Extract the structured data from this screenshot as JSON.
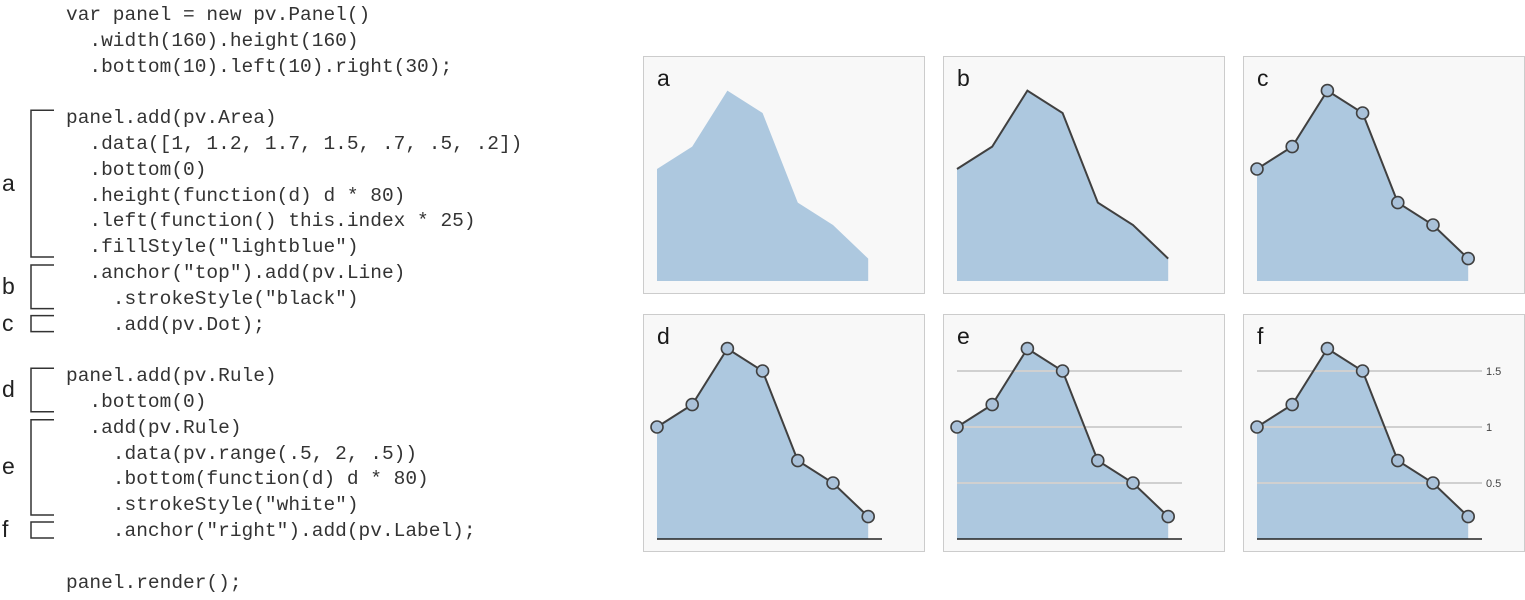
{
  "code_lines": [
    "var panel = new pv.Panel()",
    "  .width(160).height(160)",
    "  .bottom(10).left(10).right(30);",
    "",
    "panel.add(pv.Area)",
    "  .data([1, 1.2, 1.7, 1.5, .7, .5, .2])",
    "  .bottom(0)",
    "  .height(function(d) d * 80)",
    "  .left(function() this.index * 25)",
    "  .fillStyle(\"lightblue\")",
    "  .anchor(\"top\").add(pv.Line)",
    "    .strokeStyle(\"black\")",
    "    .add(pv.Dot);",
    "",
    "panel.add(pv.Rule)",
    "  .bottom(0)",
    "  .add(pv.Rule)",
    "    .data(pv.range(.5, 2, .5))",
    "    .bottom(function(d) d * 80)",
    "    .strokeStyle(\"white\")",
    "    .anchor(\"right\").add(pv.Label);",
    "",
    "panel.render();"
  ],
  "brackets": [
    {
      "label": "a",
      "first_line": 4,
      "last_line": 9
    },
    {
      "label": "b",
      "first_line": 10,
      "last_line": 11
    },
    {
      "label": "c",
      "first_line": 12,
      "last_line": 12
    },
    {
      "label": "d",
      "first_line": 14,
      "last_line": 15
    },
    {
      "label": "e",
      "first_line": 16,
      "last_line": 19
    },
    {
      "label": "f",
      "first_line": 20,
      "last_line": 20
    }
  ],
  "data_values": [
    1,
    1.2,
    1.7,
    1.5,
    0.7,
    0.5,
    0.2
  ],
  "rule_values": [
    0.5,
    1,
    1.5
  ],
  "rule_labels": [
    "0.5",
    "1",
    "1.5"
  ],
  "panels": [
    {
      "letter": "a",
      "line": false,
      "dots": false,
      "base_rule": false,
      "grid_rules": false,
      "grid_labels": false
    },
    {
      "letter": "b",
      "line": true,
      "dots": false,
      "base_rule": false,
      "grid_rules": false,
      "grid_labels": false
    },
    {
      "letter": "c",
      "line": true,
      "dots": true,
      "base_rule": false,
      "grid_rules": false,
      "grid_labels": false
    },
    {
      "letter": "d",
      "line": true,
      "dots": true,
      "base_rule": true,
      "grid_rules": false,
      "grid_labels": false
    },
    {
      "letter": "e",
      "line": true,
      "dots": true,
      "base_rule": true,
      "grid_rules": true,
      "grid_labels": false
    },
    {
      "letter": "f",
      "line": true,
      "dots": true,
      "base_rule": true,
      "grid_rules": true,
      "grid_labels": true
    }
  ],
  "colors": {
    "area_fill": "#adc8df",
    "line": "#404040",
    "dot_fill": "#a9c1d9",
    "dot_stroke": "#404040",
    "grid_rule": "#d0d0d0",
    "base_rule": "#222222",
    "label": "#444444",
    "bracket": "#333333"
  }
}
